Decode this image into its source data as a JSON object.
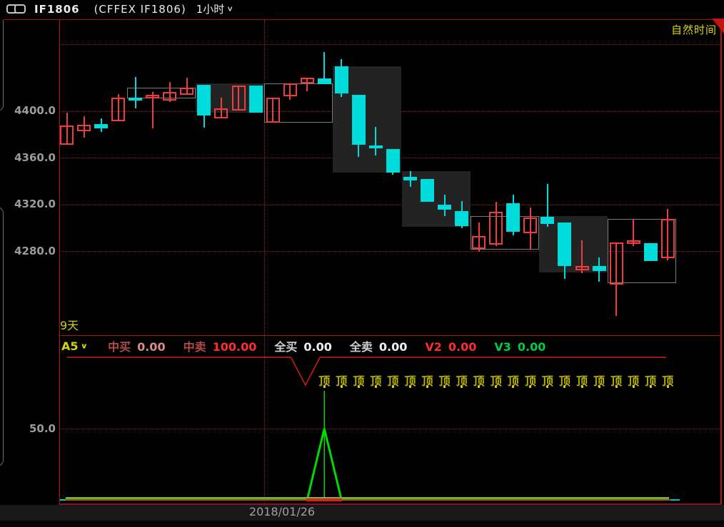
{
  "title_bar": {
    "symbol": "IF1806",
    "exchange": "(CFFEX IF1806)",
    "interval": "1小时",
    "natural_time_label": "自然时间"
  },
  "footer": {
    "date_label": "2018/01/26"
  },
  "colors": {
    "up_candle": "#f03c3c",
    "down_candle": "#00dcdc",
    "grid_red": "#9b2020",
    "accent_yellow": "#d4d400",
    "signal_green": "#00d800",
    "a5_line_red": "#d51a1a"
  },
  "chart_data": {
    "type": "candlestick",
    "title": "IF1806 (CFFEX IF1806) 1小时",
    "y_axis": {
      "ticks": [
        {
          "price": 4457.0,
          "label": ""
        },
        {
          "price": 4400.0,
          "label": "4400.0"
        },
        {
          "price": 4360.0,
          "label": "4360.0"
        },
        {
          "price": 4320.0,
          "label": "4320.0"
        },
        {
          "price": 4280.0,
          "label": "4280.0"
        }
      ]
    },
    "x_axis": {
      "date_label": "2018/01/26",
      "session_break_after_index": 11
    },
    "candles": [
      {
        "o": 4371.0,
        "h": 4398.5,
        "l": 4371.0,
        "c": 4387.5
      },
      {
        "o": 4382.6,
        "h": 4395.4,
        "l": 4377.1,
        "c": 4388.1
      },
      {
        "o": 4388.7,
        "h": 4393.6,
        "l": 4382.0,
        "c": 4385.0
      },
      {
        "o": 4391.1,
        "h": 4414.4,
        "l": 4391.1,
        "c": 4411.3
      },
      {
        "o": 4411.5,
        "h": 4429.0,
        "l": 4402.1,
        "c": 4409.0
      },
      {
        "o": 4410.7,
        "h": 4416.2,
        "l": 4385.0,
        "c": 4413.7
      },
      {
        "o": 4408.9,
        "h": 4424.7,
        "l": 4407.6,
        "c": 4416.2
      },
      {
        "o": 4413.7,
        "h": 4428.4,
        "l": 4413.7,
        "c": 4419.8
      },
      {
        "o": 4422.3,
        "h": 4422.3,
        "l": 4385.6,
        "c": 4396.0
      },
      {
        "o": 4393.6,
        "h": 4411.3,
        "l": 4393.6,
        "c": 4402.1
      },
      {
        "o": 4400.3,
        "h": 4421.7,
        "l": 4400.3,
        "c": 4421.7
      },
      {
        "o": 4421.7,
        "h": 4421.7,
        "l": 4398.5,
        "c": 4398.5
      },
      {
        "o": 4389.9,
        "h": 4411.3,
        "l": 4389.9,
        "c": 4411.3
      },
      {
        "o": 4412.5,
        "h": 4423.5,
        "l": 4409.5,
        "c": 4423.5
      },
      {
        "o": 4423.5,
        "h": 4428.4,
        "l": 4416.8,
        "c": 4428.4
      },
      {
        "o": 4427.8,
        "h": 4450.4,
        "l": 4423.2,
        "c": 4423.2
      },
      {
        "o": 4438.4,
        "h": 4444.3,
        "l": 4411.9,
        "c": 4415.1
      },
      {
        "o": 4413.9,
        "h": 4413.9,
        "l": 4360.6,
        "c": 4371.2
      },
      {
        "o": 4370.4,
        "h": 4386.3,
        "l": 4361.8,
        "c": 4368.0
      },
      {
        "o": 4367.2,
        "h": 4367.2,
        "l": 4345.4,
        "c": 4347.4
      },
      {
        "o": 4343.5,
        "h": 4348.4,
        "l": 4335.0,
        "c": 4340.5
      },
      {
        "o": 4341.9,
        "h": 4341.9,
        "l": 4322.0,
        "c": 4322.0
      },
      {
        "o": 4319.7,
        "h": 4328.5,
        "l": 4310.1,
        "c": 4315.5
      },
      {
        "o": 4314.2,
        "h": 4322.8,
        "l": 4299.6,
        "c": 4301.2
      },
      {
        "o": 4281.7,
        "h": 4304.7,
        "l": 4279.4,
        "c": 4293.1
      },
      {
        "o": 4285.4,
        "h": 4322.0,
        "l": 4284.4,
        "c": 4313.8
      },
      {
        "o": 4320.9,
        "h": 4328.5,
        "l": 4293.4,
        "c": 4296.5
      },
      {
        "o": 4295.4,
        "h": 4317.4,
        "l": 4281.7,
        "c": 4308.7
      },
      {
        "o": 4309.3,
        "h": 4337.4,
        "l": 4300.8,
        "c": 4303.2
      },
      {
        "o": 4304.6,
        "h": 4304.6,
        "l": 4256.4,
        "c": 4267.4
      },
      {
        "o": 4263.4,
        "h": 4289.4,
        "l": 4260.9,
        "c": 4267.0
      },
      {
        "o": 4267.0,
        "h": 4274.6,
        "l": 4253.7,
        "c": 4262.9
      },
      {
        "o": 4251.1,
        "h": 4287.4,
        "l": 4224.2,
        "c": 4287.4
      },
      {
        "o": 4285.9,
        "h": 4306.7,
        "l": 4284.4,
        "c": 4289.0
      },
      {
        "o": 4286.7,
        "h": 4286.7,
        "l": 4271.4,
        "c": 4271.4
      },
      {
        "o": 4274.1,
        "h": 4315.9,
        "l": 4272.1,
        "c": 4307.7
      }
    ],
    "dark_boxes": [
      {
        "from": 8,
        "to": 11,
        "top": 4423.5,
        "bottom": 4398.5
      },
      {
        "from": 16,
        "to": 19,
        "top": 4438.4,
        "bottom": 4347.4
      },
      {
        "from": 20,
        "to": 23,
        "top": 4348.4,
        "bottom": 4300.8
      },
      {
        "from": 28,
        "to": 31,
        "top": 4309.9,
        "bottom": 4261.7
      }
    ],
    "outline_boxes": [
      {
        "from": 4,
        "to": 7,
        "top": 4420.0,
        "bottom": 4410.9
      },
      {
        "from": 12,
        "to": 15,
        "top": 4423.7,
        "bottom": 4390.1
      },
      {
        "from": 24,
        "to": 27,
        "top": 4309.9,
        "bottom": 4281.2
      },
      {
        "from": 32,
        "to": 35,
        "top": 4307.7,
        "bottom": 4252.3
      }
    ],
    "sub_chart": {
      "period_label": "9天",
      "indicator_name": "A5",
      "fields": [
        {
          "label": "中买",
          "value": "0.00",
          "label_color": "#b24b4b",
          "value_color": "#d98a8a"
        },
        {
          "label": "中卖",
          "value": "100.00",
          "label_color": "#b24b4b",
          "value_color": "#ff2e2e"
        },
        {
          "label": "全买",
          "value": "0.00",
          "label_color": "#d0d0d0",
          "value_color": "#f0f0f0"
        },
        {
          "label": "全卖",
          "value": "0.00",
          "label_color": "#d0d0d0",
          "value_color": "#f0f0f0"
        },
        {
          "label": "V2",
          "value": "0.00",
          "label_color": "#ff2e2e",
          "value_color": "#ff2e2e"
        },
        {
          "label": "V3",
          "value": "0.00",
          "label_color": "#00cc44",
          "value_color": "#00cc44"
        }
      ],
      "mid_axis_label": "50.0",
      "a5_line_points": [
        {
          "i": 0,
          "v": 100
        },
        {
          "i": 13.05,
          "v": 100
        },
        {
          "i": 13.9,
          "v": 80.5
        },
        {
          "i": 14.75,
          "v": 100
        },
        {
          "i": 34.9,
          "v": 100
        }
      ],
      "signal": {
        "candle_index": 15,
        "line_top_value": 76.5,
        "triangle_peak_value": 50,
        "triangle_left_index": 14,
        "triangle_right_index": 16
      },
      "top_markers": {
        "text": "顶",
        "from_index": 15,
        "to_index": 35
      }
    }
  }
}
